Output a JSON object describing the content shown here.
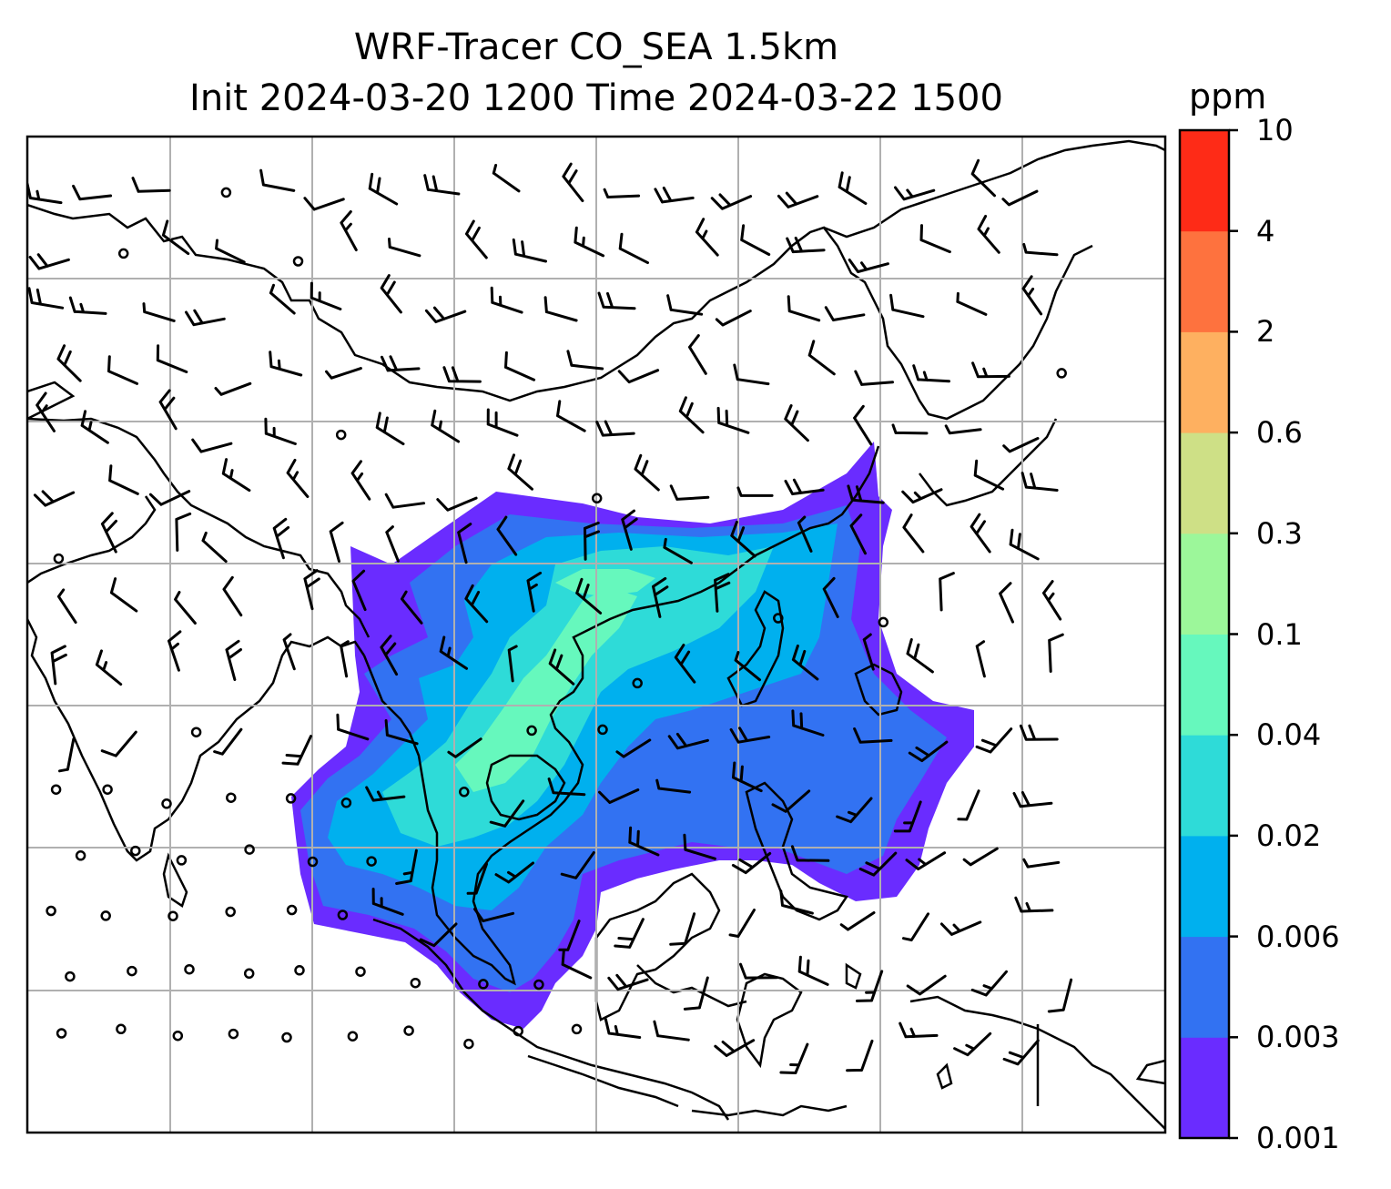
{
  "title": {
    "line1": "WRF-Tracer CO_SEA 1.5km",
    "line2": "Init 2024-03-20 1200 Time 2024-03-22 1500"
  },
  "colorbar": {
    "unit": "ppm",
    "ticks": [
      "0.001",
      "0.003",
      "0.006",
      "0.02",
      "0.04",
      "0.1",
      "0.3",
      "0.6",
      "2",
      "4",
      "10"
    ],
    "colors": [
      "#6a2cff",
      "#3272f2",
      "#00b0ee",
      "#2edbd8",
      "#66f8bd",
      "#9cf79a",
      "#cee086",
      "#feb060",
      "#fe723e",
      "#fe2b17"
    ]
  },
  "map": {
    "region": "Southeast Asia",
    "field": "CO tracer concentration",
    "overlay": "wind barbs",
    "gridlines": true
  },
  "icons": {
    "wind_barb": "wind-barb-icon",
    "calm": "calm-circle-icon"
  }
}
